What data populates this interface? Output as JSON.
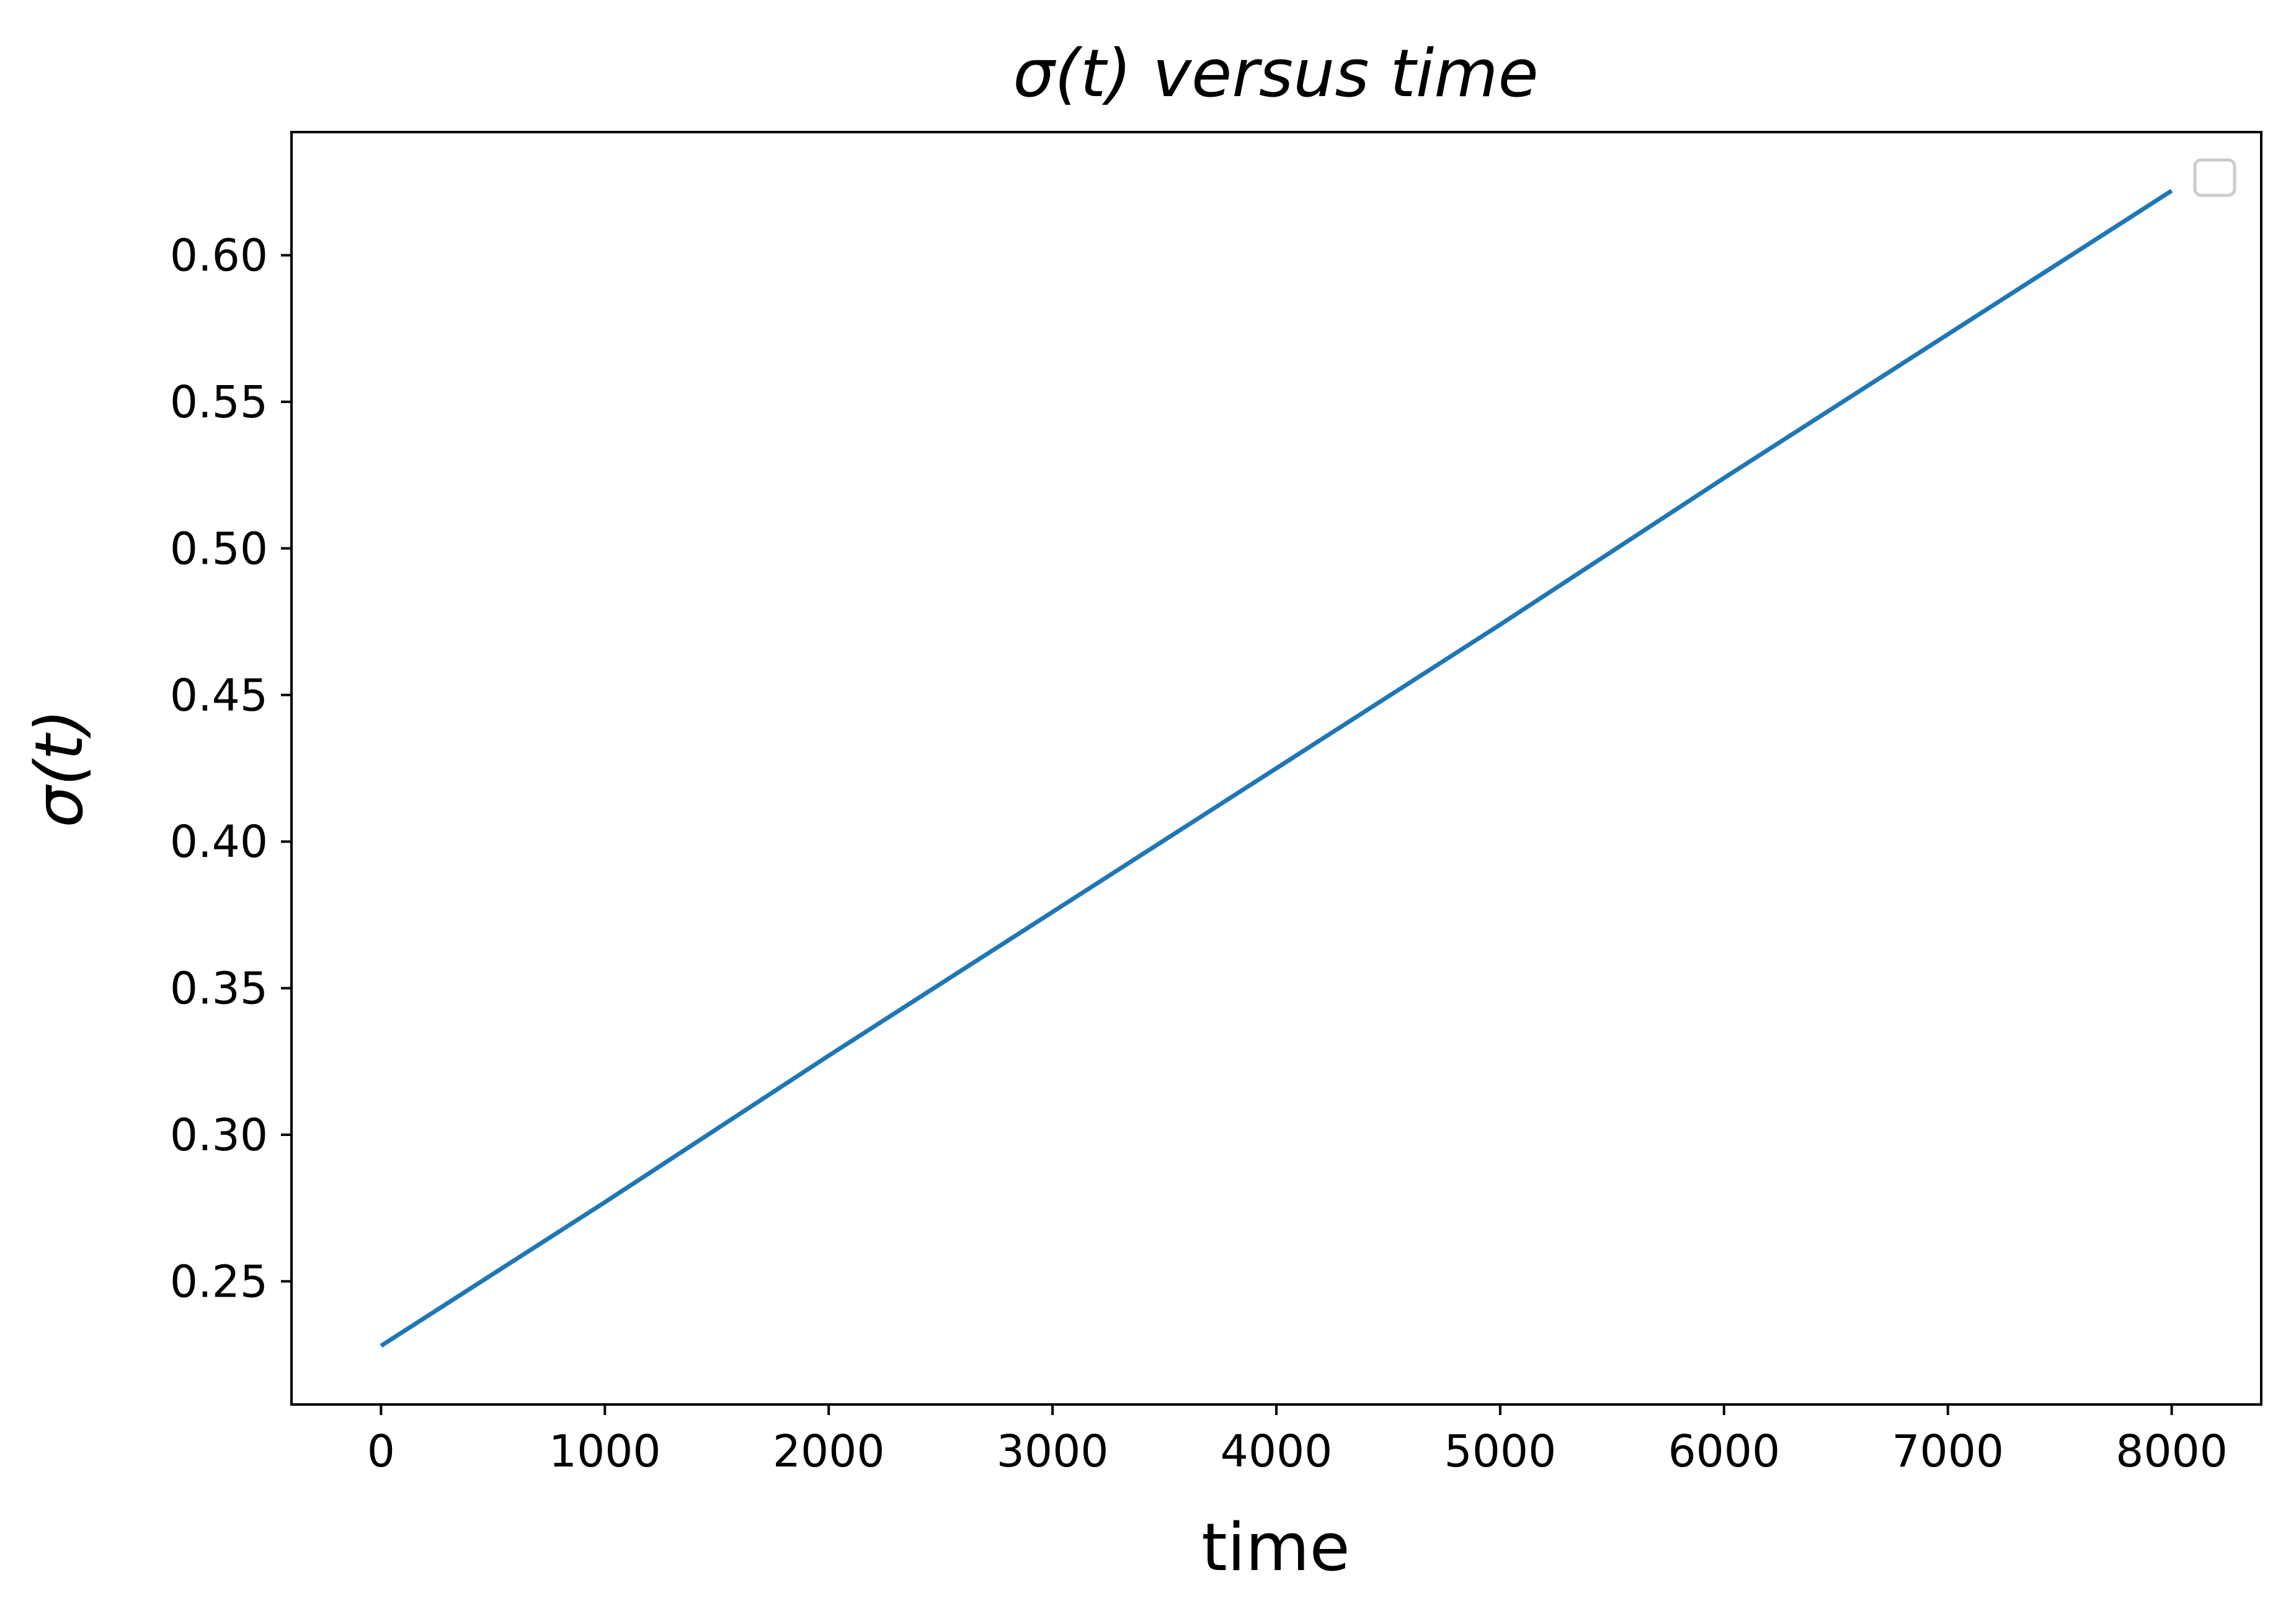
{
  "chart_data": {
    "type": "line",
    "title": "σ(t) versus time",
    "xlabel": "time",
    "ylabel": "σ(t)",
    "xlim": [
      -400,
      8400
    ],
    "ylim": [
      0.208,
      0.642
    ],
    "x_ticks": [
      0,
      1000,
      2000,
      3000,
      4000,
      5000,
      6000,
      7000,
      8000
    ],
    "x_tick_labels": [
      "0",
      "1000",
      "2000",
      "3000",
      "4000",
      "5000",
      "6000",
      "7000",
      "8000"
    ],
    "y_ticks": [
      0.25,
      0.3,
      0.35,
      0.4,
      0.45,
      0.5,
      0.55,
      0.6
    ],
    "y_tick_labels": [
      "0.25",
      "0.30",
      "0.35",
      "0.40",
      "0.45",
      "0.50",
      "0.55",
      "0.60"
    ],
    "grid": false,
    "legend": {
      "placement": "top-right",
      "entries": []
    },
    "series": [
      {
        "color": "#1f77b4",
        "x": [
          0,
          1000,
          2000,
          3000,
          4000,
          5000,
          6000,
          7000,
          8000
        ],
        "y": [
          0.228,
          0.277,
          0.327,
          0.376,
          0.425,
          0.474,
          0.524,
          0.573,
          0.622
        ]
      }
    ]
  }
}
